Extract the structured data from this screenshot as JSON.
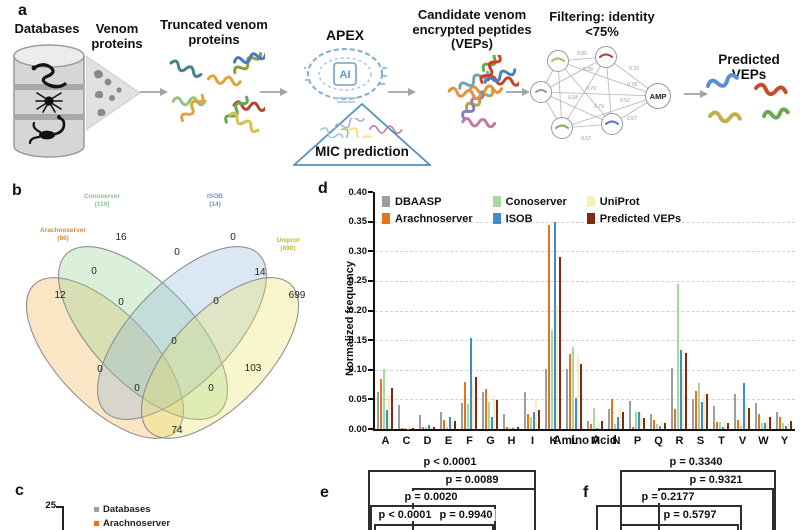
{
  "figure": {
    "panel_labels": {
      "a": "a",
      "b": "b",
      "c": "c",
      "d": "d",
      "e": "e",
      "f": "f"
    }
  },
  "panel_a": {
    "databases_label": "Databases",
    "venom_proteins_label": "Venom proteins",
    "truncated_label": "Truncated venom proteins",
    "apex_label": "APEX",
    "ai_label": "AI",
    "mic_label": "MIC prediction",
    "candidate_label": "Candidate venom encrypted peptides (VEPs)",
    "filtering_label": "Filtering: identity <75%",
    "amp_label": "AMP",
    "predicted_label": "Predicted VEPs",
    "network_weights": [
      "0.85",
      "0.38",
      "0.33",
      "0.70",
      "0.78",
      "0.34",
      "0.79",
      "0.52",
      "0.57",
      "0.52"
    ]
  },
  "panel_b": {
    "sets": [
      {
        "name": "Arachnoserver",
        "total_display": "(86)",
        "color": "#d98e2b",
        "fill": "#eeb24a"
      },
      {
        "name": "Conoserver",
        "total_display": "(119)",
        "color": "#8cbf8c",
        "fill": "#8fd08f"
      },
      {
        "name": "ISOB",
        "total_display": "(14)",
        "color": "#7a8fc9",
        "fill": "#92b4dd"
      },
      {
        "name": "Uniprot",
        "total_display": "(890)",
        "color": "#b9b93d",
        "fill": "#e8e464"
      }
    ],
    "counts": {
      "a": "12",
      "b": "16",
      "c": "0",
      "d": "699",
      "ab": "0",
      "bc": "0",
      "cd": "14",
      "ac": "0",
      "bd": "103",
      "ad": "74",
      "abc": "0",
      "bcd": "0",
      "abd": "0",
      "acd": "0",
      "abcd": "0"
    }
  },
  "panel_c": {
    "ytick": "25",
    "legend": [
      {
        "label": "Databases",
        "color": "#a0a0a0"
      },
      {
        "label": "Arachnoserver",
        "color": "#e2751d"
      }
    ]
  },
  "chart_data": {
    "type": "bar",
    "title": "",
    "xlabel": "Amino Acid",
    "ylabel": "Normalized frequency",
    "categories": [
      "A",
      "C",
      "D",
      "E",
      "F",
      "G",
      "H",
      "I",
      "K",
      "L",
      "M",
      "N",
      "P",
      "Q",
      "R",
      "S",
      "T",
      "V",
      "W",
      "Y"
    ],
    "ylim": [
      0,
      0.4
    ],
    "yticks": [
      "0.00",
      "0.05",
      "0.10",
      "0.15",
      "0.20",
      "0.25",
      "0.30",
      "0.35",
      "0.40"
    ],
    "grid": true,
    "legend_position": "top-left-inside",
    "series": [
      {
        "name": "DBAASP",
        "color": "#9e9e9e",
        "values": [
          0.062,
          0.041,
          0.024,
          0.028,
          0.044,
          0.063,
          0.025,
          0.063,
          0.102,
          0.101,
          0.014,
          0.033,
          0.047,
          0.026,
          0.103,
          0.051,
          0.039,
          0.06,
          0.044,
          0.029
        ]
      },
      {
        "name": "Arachnoserver",
        "color": "#e2751d",
        "values": [
          0.084,
          0.002,
          0.004,
          0.016,
          0.08,
          0.067,
          0.003,
          0.025,
          0.345,
          0.126,
          0.008,
          0.051,
          0.004,
          0.015,
          0.034,
          0.064,
          0.012,
          0.016,
          0.025,
          0.021
        ]
      },
      {
        "name": "Conoserver",
        "color": "#a9d7a0",
        "values": [
          0.102,
          0.002,
          0.003,
          0.004,
          0.043,
          0.045,
          0.002,
          0.02,
          0.168,
          0.139,
          0.035,
          0.008,
          0.028,
          0.008,
          0.245,
          0.077,
          0.012,
          0.005,
          0.01,
          0.01
        ]
      },
      {
        "name": "ISOB",
        "color": "#3f8ec5",
        "values": [
          0.032,
          0.0,
          0.006,
          0.02,
          0.154,
          0.021,
          0.001,
          0.029,
          0.35,
          0.053,
          0.001,
          0.02,
          0.028,
          0.005,
          0.133,
          0.046,
          0.003,
          0.078,
          0.01,
          0.005
        ]
      },
      {
        "name": "UniProt",
        "color": "#f5efc0",
        "values": [
          0.055,
          0.002,
          0.004,
          0.006,
          0.074,
          0.055,
          0.004,
          0.05,
          0.21,
          0.125,
          0.01,
          0.035,
          0.027,
          0.012,
          0.095,
          0.06,
          0.012,
          0.042,
          0.015,
          0.008
        ]
      },
      {
        "name": "Predicted VEPs",
        "color": "#7d2a12",
        "values": [
          0.07,
          0.002,
          0.004,
          0.013,
          0.088,
          0.049,
          0.004,
          0.032,
          0.29,
          0.11,
          0.014,
          0.029,
          0.018,
          0.01,
          0.129,
          0.06,
          0.01,
          0.036,
          0.02,
          0.013
        ]
      }
    ]
  },
  "panel_e": {
    "p_values": [
      "p < 0.0001",
      "p = 0.0089",
      "p = 0.0020",
      "p < 0.0001",
      "p = 0.9940"
    ]
  },
  "panel_f": {
    "p_values": [
      "p = 0.3340",
      "p = 0.9321",
      "p = 0.2177",
      "p = 0.5797"
    ]
  }
}
